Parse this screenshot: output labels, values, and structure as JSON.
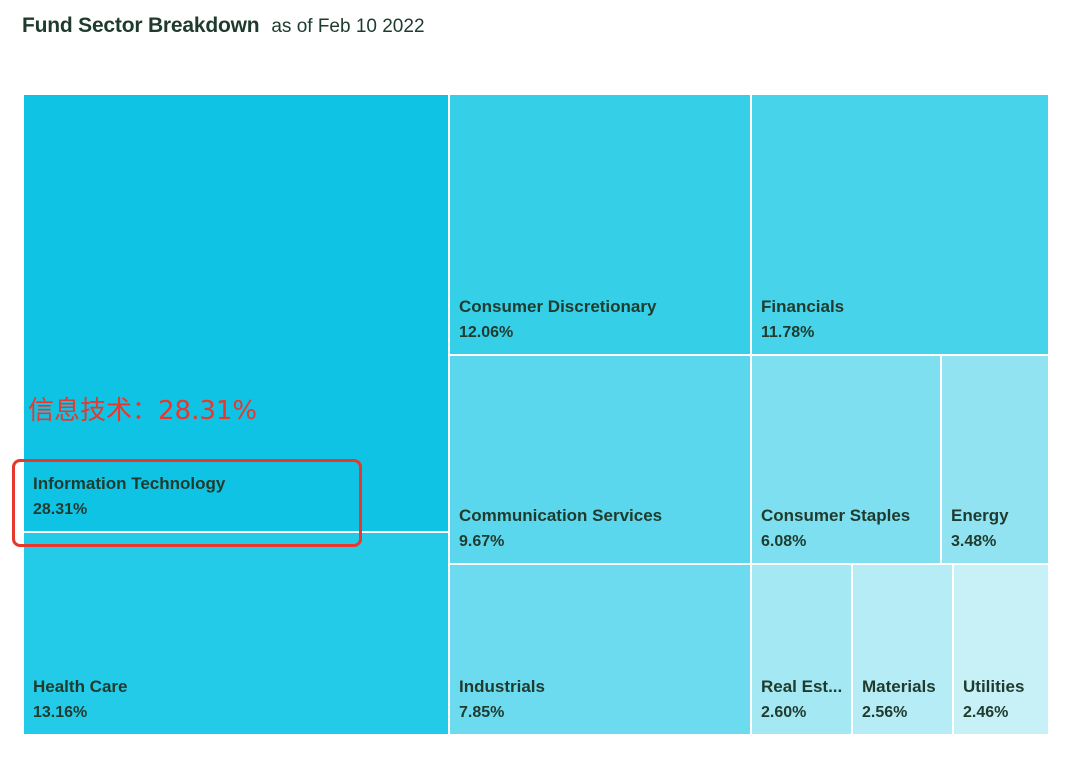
{
  "header": {
    "title": "Fund Sector Breakdown",
    "as_of": "as of Feb 10 2022"
  },
  "annotation": {
    "text": "信息技术：28.31%",
    "color": "#e8372d"
  },
  "chart_data": {
    "type": "treemap",
    "title": "Fund Sector Breakdown",
    "subtitle": "as of Feb 10 2022",
    "unit": "%",
    "sectors": [
      {
        "name": "Information Technology",
        "label": "Information Technology",
        "value": 28.31,
        "value_label": "28.31%",
        "color": "#0fc3e5"
      },
      {
        "name": "Health Care",
        "label": "Health Care",
        "value": 13.16,
        "value_label": "13.16%",
        "color": "#24cbe9"
      },
      {
        "name": "Consumer Discretionary",
        "label": "Consumer Discretionary",
        "value": 12.06,
        "value_label": "12.06%",
        "color": "#35cfe8"
      },
      {
        "name": "Financials",
        "label": "Financials",
        "value": 11.78,
        "value_label": "11.78%",
        "color": "#47d3ea"
      },
      {
        "name": "Communication Services",
        "label": "Communication Services",
        "value": 9.67,
        "value_label": "9.67%",
        "color": "#5bd7ed"
      },
      {
        "name": "Industrials",
        "label": "Industrials",
        "value": 7.85,
        "value_label": "7.85%",
        "color": "#6cdbef"
      },
      {
        "name": "Consumer Staples",
        "label": "Consumer Staples",
        "value": 6.08,
        "value_label": "6.08%",
        "color": "#7ddff0"
      },
      {
        "name": "Energy",
        "label": "Energy",
        "value": 3.48,
        "value_label": "3.48%",
        "color": "#91e3f2"
      },
      {
        "name": "Real Estate",
        "label": "Real Est...",
        "value": 2.6,
        "value_label": "2.60%",
        "color": "#a4e8f4"
      },
      {
        "name": "Materials",
        "label": "Materials",
        "value": 2.56,
        "value_label": "2.56%",
        "color": "#b6ecf6"
      },
      {
        "name": "Utilities",
        "label": "Utilities",
        "value": 2.46,
        "value_label": "2.46%",
        "color": "#c8f1f7"
      }
    ]
  }
}
